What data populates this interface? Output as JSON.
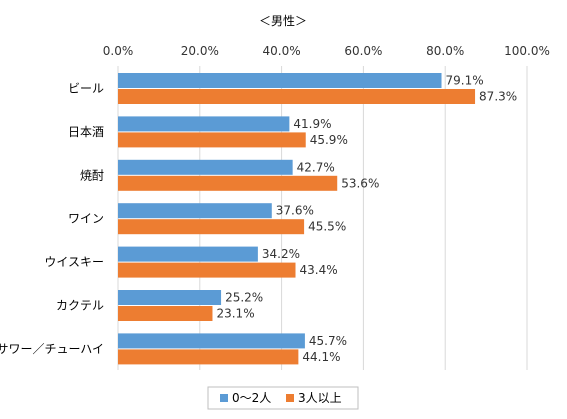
{
  "chart_data": {
    "type": "bar",
    "orientation": "horizontal",
    "title": "＜男性＞",
    "categories": [
      "ビール",
      "日本酒",
      "焼酎",
      "ワイン",
      "ウイスキー",
      "カクテル",
      "サワー／チューハイ"
    ],
    "series": [
      {
        "name": "0～2人",
        "color": "#5b9bd5",
        "values": [
          79.1,
          41.9,
          42.7,
          37.6,
          34.2,
          25.2,
          45.7
        ]
      },
      {
        "name": "3人以上",
        "color": "#ed7d31",
        "values": [
          87.3,
          45.9,
          53.6,
          45.5,
          43.4,
          23.1,
          44.1
        ]
      }
    ],
    "xlim": [
      0,
      100
    ],
    "ticks": [
      "0.0%",
      "20.0%",
      "40.0%",
      "60.0%",
      "80.0%",
      "100.0%"
    ],
    "value_format_suffix": "%",
    "grid": true,
    "legend_position": "bottom"
  }
}
